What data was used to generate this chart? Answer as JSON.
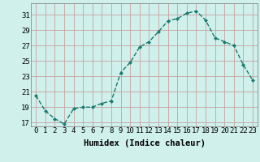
{
  "x": [
    0,
    1,
    2,
    3,
    4,
    5,
    6,
    7,
    8,
    9,
    10,
    11,
    12,
    13,
    14,
    15,
    16,
    17,
    18,
    19,
    20,
    21,
    22,
    23
  ],
  "y": [
    20.5,
    18.5,
    17.5,
    16.8,
    18.8,
    19.0,
    19.0,
    19.5,
    19.8,
    23.5,
    24.8,
    26.8,
    27.5,
    28.8,
    30.2,
    30.5,
    31.2,
    31.5,
    30.3,
    28.0,
    27.5,
    27.0,
    24.5,
    22.5
  ],
  "line_color": "#1a7a6e",
  "marker": "D",
  "marker_size": 2,
  "linewidth": 1.0,
  "xlabel": "Humidex (Indice chaleur)",
  "xlim": [
    -0.5,
    23.5
  ],
  "ylim": [
    16.5,
    32.5
  ],
  "yticks": [
    17,
    19,
    21,
    23,
    25,
    27,
    29,
    31
  ],
  "xtick_labels": [
    "0",
    "1",
    "2",
    "3",
    "4",
    "5",
    "6",
    "7",
    "8",
    "9",
    "10",
    "11",
    "12",
    "13",
    "14",
    "15",
    "16",
    "17",
    "18",
    "19",
    "20",
    "21",
    "22",
    "23"
  ],
  "bg_color": "#cff0eb",
  "grid_color": "#c8a0a0",
  "xlabel_fontsize": 7.5,
  "tick_fontsize": 6.5
}
